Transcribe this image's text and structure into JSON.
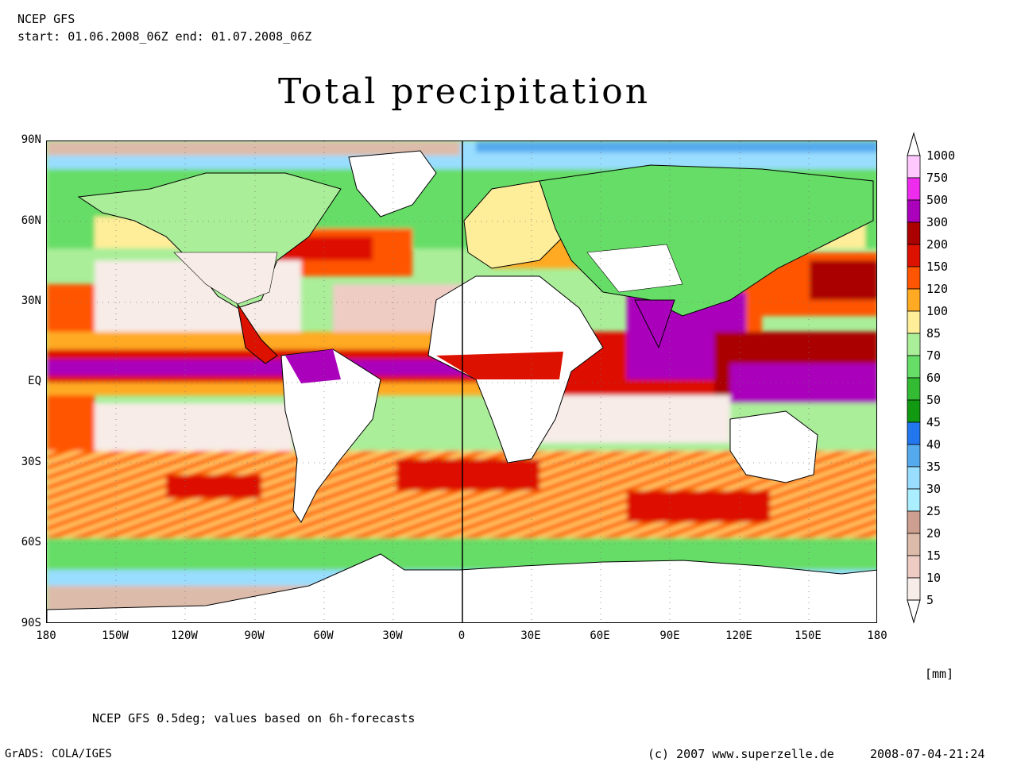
{
  "header": {
    "line1": "NCEP GFS",
    "line2": "start: 01.06.2008_06Z end: 01.07.2008_06Z"
  },
  "title": "Total precipitation",
  "axes": {
    "lat_labels": [
      "90N",
      "60N",
      "30N",
      "EQ",
      "30S",
      "60S",
      "90S"
    ],
    "lon_labels": [
      "180",
      "150W",
      "120W",
      "90W",
      "60W",
      "30W",
      "0",
      "30E",
      "60E",
      "90E",
      "120E",
      "150E",
      "180"
    ]
  },
  "legend": {
    "unit": "[mm]",
    "levels": [
      "1000",
      "750",
      "500",
      "300",
      "200",
      "150",
      "120",
      "100",
      "85",
      "70",
      "60",
      "50",
      "45",
      "40",
      "35",
      "30",
      "25",
      "20",
      "15",
      "10",
      "5"
    ],
    "colors": [
      "#ffc8ff",
      "#ee2cee",
      "#aa00bb",
      "#aa0000",
      "#dd1100",
      "#ff5500",
      "#ffaa22",
      "#ffee99",
      "#aaee99",
      "#66dd66",
      "#33bb33",
      "#119911",
      "#2277ee",
      "#55aaee",
      "#99ddff",
      "#aaeeff",
      "#cc9f90",
      "#ddbbaa",
      "#eeccc4",
      "#f7ece8",
      "#ffffff"
    ]
  },
  "footer": {
    "note": "NCEP GFS 0.5deg; values based on 6h-forecasts",
    "grads": "GrADS: COLA/IGES",
    "copyright": "(c) 2007 www.superzelle.de",
    "timestamp": "2008-07-04-21:24"
  }
}
